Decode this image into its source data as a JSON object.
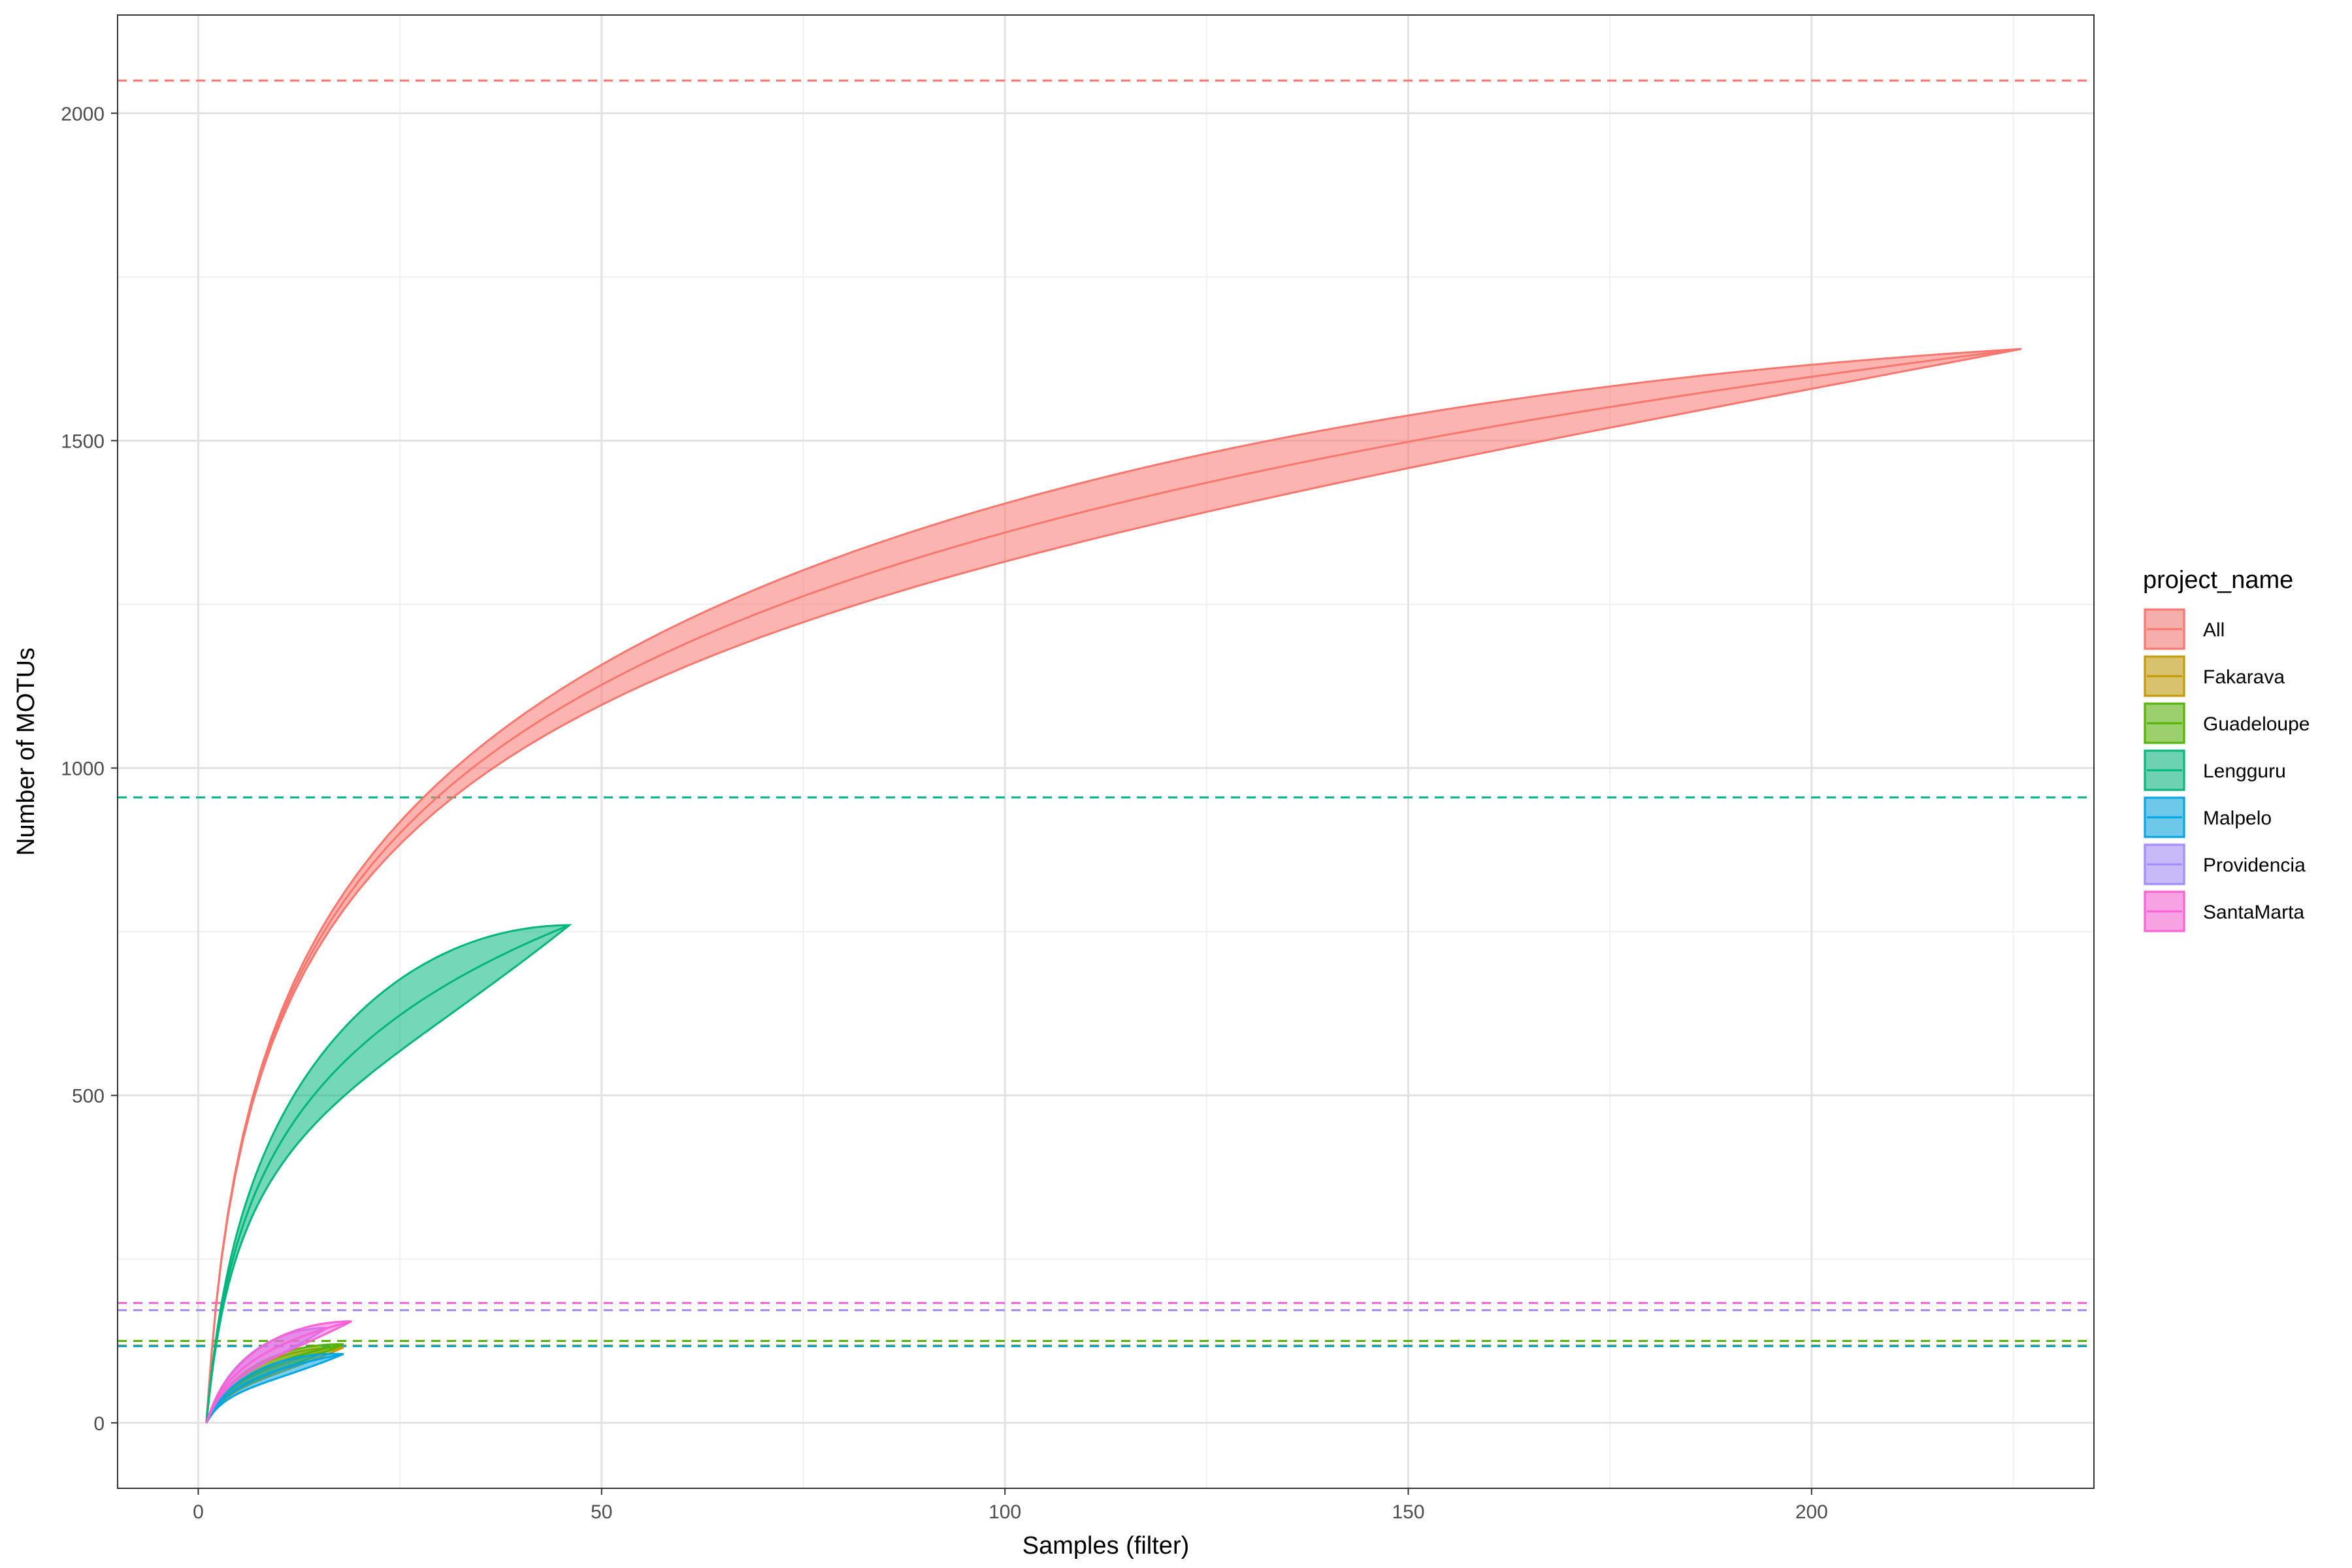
{
  "chart_data": {
    "type": "area",
    "title": "",
    "xlabel": "Samples (filter)",
    "ylabel": "Number of MOTUs",
    "xlim": [
      -10,
      235
    ],
    "ylim": [
      -100,
      2150
    ],
    "x_ticks": [
      0,
      50,
      100,
      150,
      200
    ],
    "y_ticks": [
      0,
      500,
      1000,
      1500,
      2000
    ],
    "grid": true,
    "legend": {
      "title": "project_name",
      "position": "right",
      "entries": [
        "All",
        "Fakarava",
        "Guadeloupe",
        "Lengguru",
        "Malpelo",
        "Providencia",
        "SantaMarta"
      ]
    },
    "series": [
      {
        "name": "All",
        "color": "#F8766D",
        "x_max": 226,
        "y_end": 1640,
        "band_mid": 45,
        "asymptote": 2050
      },
      {
        "name": "Fakarava",
        "color": "#C49A00",
        "x_max": 18,
        "y_end": 115,
        "band_mid": 12,
        "asymptote": 118
      },
      {
        "name": "Guadeloupe",
        "color": "#53B400",
        "x_max": 18,
        "y_end": 120,
        "band_mid": 12,
        "asymptote": 125
      },
      {
        "name": "Lengguru",
        "color": "#00B67D",
        "x_max": 46,
        "y_end": 760,
        "band_mid": 55,
        "asymptote": 955
      },
      {
        "name": "Malpelo",
        "color": "#00A6E4",
        "x_max": 18,
        "y_end": 105,
        "band_mid": 12,
        "asymptote": 117
      },
      {
        "name": "Providencia",
        "color": "#A58AFF",
        "x_max": 16,
        "y_end": 145,
        "band_mid": 14,
        "asymptote": 172
      },
      {
        "name": "SantaMarta",
        "color": "#FB61D7",
        "x_max": 19,
        "y_end": 155,
        "band_mid": 14,
        "asymptote": 183
      }
    ]
  }
}
